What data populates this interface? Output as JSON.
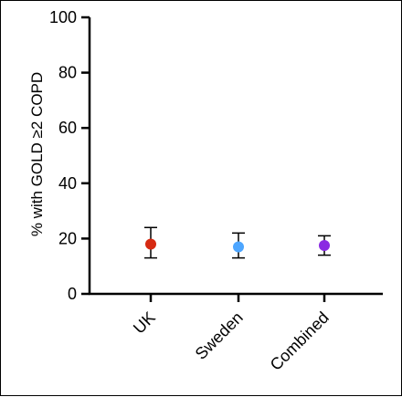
{
  "chart_data": {
    "type": "scatter",
    "title": "",
    "xlabel": "",
    "ylabel": "% with GOLD ≥2 COPD",
    "categories": [
      "UK",
      "Sweden",
      "Combined"
    ],
    "values": [
      18,
      17,
      17.5
    ],
    "error_low": [
      13,
      13,
      14
    ],
    "error_high": [
      24,
      22,
      21
    ],
    "colors": [
      "#d62a12",
      "#4da6ff",
      "#8a2be2"
    ],
    "ylim": [
      0,
      100
    ],
    "yticks": [
      "0",
      "20",
      "40",
      "60",
      "80",
      "100"
    ],
    "grid": false,
    "legend": "none"
  }
}
